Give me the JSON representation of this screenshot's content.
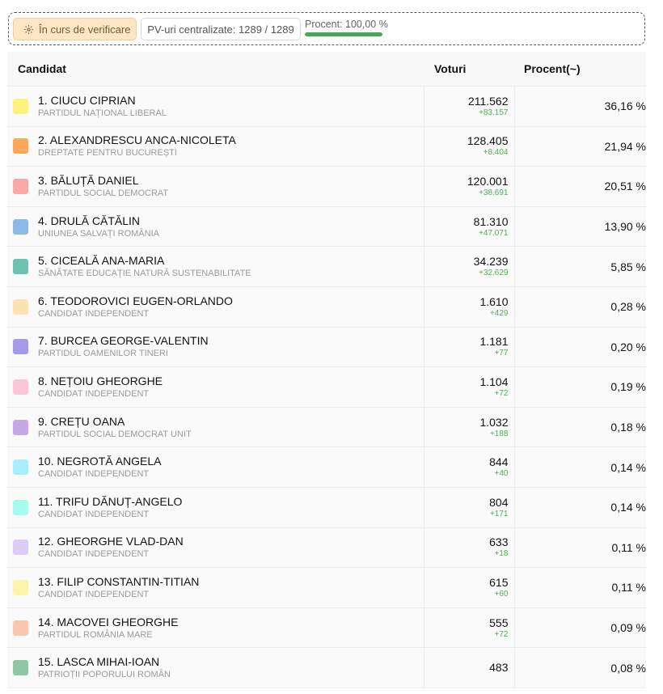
{
  "status": {
    "verify_label": "În curs de verificare",
    "pv_label": "PV-uri centralizate: 1289 / 1289",
    "procent_label": "Procent: 100,00 %",
    "procent_value": 1.0,
    "verify_icon": "gear-icon"
  },
  "table": {
    "headers": {
      "candidate": "Candidat",
      "votes": "Voturi",
      "percent": "Procent(~)"
    },
    "rows": [
      {
        "name": "1. CIUCU CIPRIAN",
        "party": "PARTIDUL NAȚIONAL LIBERAL",
        "votes": "211.562",
        "delta": "+83.157",
        "percent": "36,16 %",
        "color": "#fef37a"
      },
      {
        "name": "2. ALEXANDRESCU ANCA-NICOLETA",
        "party": "DREPTATE PENTRU BUCUREȘTI",
        "votes": "128.405",
        "delta": "+8.404",
        "percent": "21,94 %",
        "color": "#fba85a"
      },
      {
        "name": "3. BĂLUȚĂ DANIEL",
        "party": "PARTIDUL SOCIAL DEMOCRAT",
        "votes": "120.001",
        "delta": "+38.691",
        "percent": "20,51 %",
        "color": "#f9a7a7"
      },
      {
        "name": "4. DRULĂ CĂTĂLIN",
        "party": "UNIUNEA SALVAȚI ROMÂNIA",
        "votes": "81.310",
        "delta": "+47.071",
        "percent": "13,90 %",
        "color": "#8fb8ea"
      },
      {
        "name": "5. CICEALĂ ANA-MARIA",
        "party": "SĂNĂTATE EDUCAȚIE NATURĂ SUSTENABILITATE",
        "votes": "34.239",
        "delta": "+32.629",
        "percent": "5,85 %",
        "color": "#6cc1b1"
      },
      {
        "name": "6. TEODOROVICI EUGEN-ORLANDO",
        "party": "CANDIDAT INDEPENDENT",
        "votes": "1.610",
        "delta": "+429",
        "percent": "0,28 %",
        "color": "#fde2b2"
      },
      {
        "name": "7. BURCEA GEORGE-VALENTIN",
        "party": "PARTIDUL OAMENILOR TINERI",
        "votes": "1.181",
        "delta": "+77",
        "percent": "0,20 %",
        "color": "#a49be8"
      },
      {
        "name": "8. NEȚOIU GHEORGHE",
        "party": "CANDIDAT INDEPENDENT",
        "votes": "1.104",
        "delta": "+72",
        "percent": "0,19 %",
        "color": "#fbc6d7"
      },
      {
        "name": "9. CREȚU OANA",
        "party": "PARTIDUL SOCIAL DEMOCRAT UNIT",
        "votes": "1.032",
        "delta": "+188",
        "percent": "0,18 %",
        "color": "#c7a8e6"
      },
      {
        "name": "10. NEGROTĂ ANGELA",
        "party": "CANDIDAT INDEPENDENT",
        "votes": "844",
        "delta": "+40",
        "percent": "0,14 %",
        "color": "#a8eefc"
      },
      {
        "name": "11. TRIFU DĂNUȚ-ANGELO",
        "party": "CANDIDAT INDEPENDENT",
        "votes": "804",
        "delta": "+171",
        "percent": "0,14 %",
        "color": "#a6fbef"
      },
      {
        "name": "12. GHEORGHE VLAD-DAN",
        "party": "CANDIDAT INDEPENDENT",
        "votes": "633",
        "delta": "+18",
        "percent": "0,11 %",
        "color": "#dccdf7"
      },
      {
        "name": "13. FILIP CONSTANTIN-TITIAN",
        "party": "CANDIDAT INDEPENDENT",
        "votes": "615",
        "delta": "+60",
        "percent": "0,11 %",
        "color": "#fdf3a9"
      },
      {
        "name": "14. MACOVEI GHEORGHE",
        "party": "PARTIDUL ROMÂNIA MARE",
        "votes": "555",
        "delta": "+72",
        "percent": "0,09 %",
        "color": "#f9c6ae"
      },
      {
        "name": "15. LASCA MIHAI-IOAN",
        "party": "PATRIOȚII POPORULUI ROMÂN",
        "votes": "483",
        "delta": "",
        "percent": "0,08 %",
        "color": "#8fc7a6"
      }
    ]
  }
}
